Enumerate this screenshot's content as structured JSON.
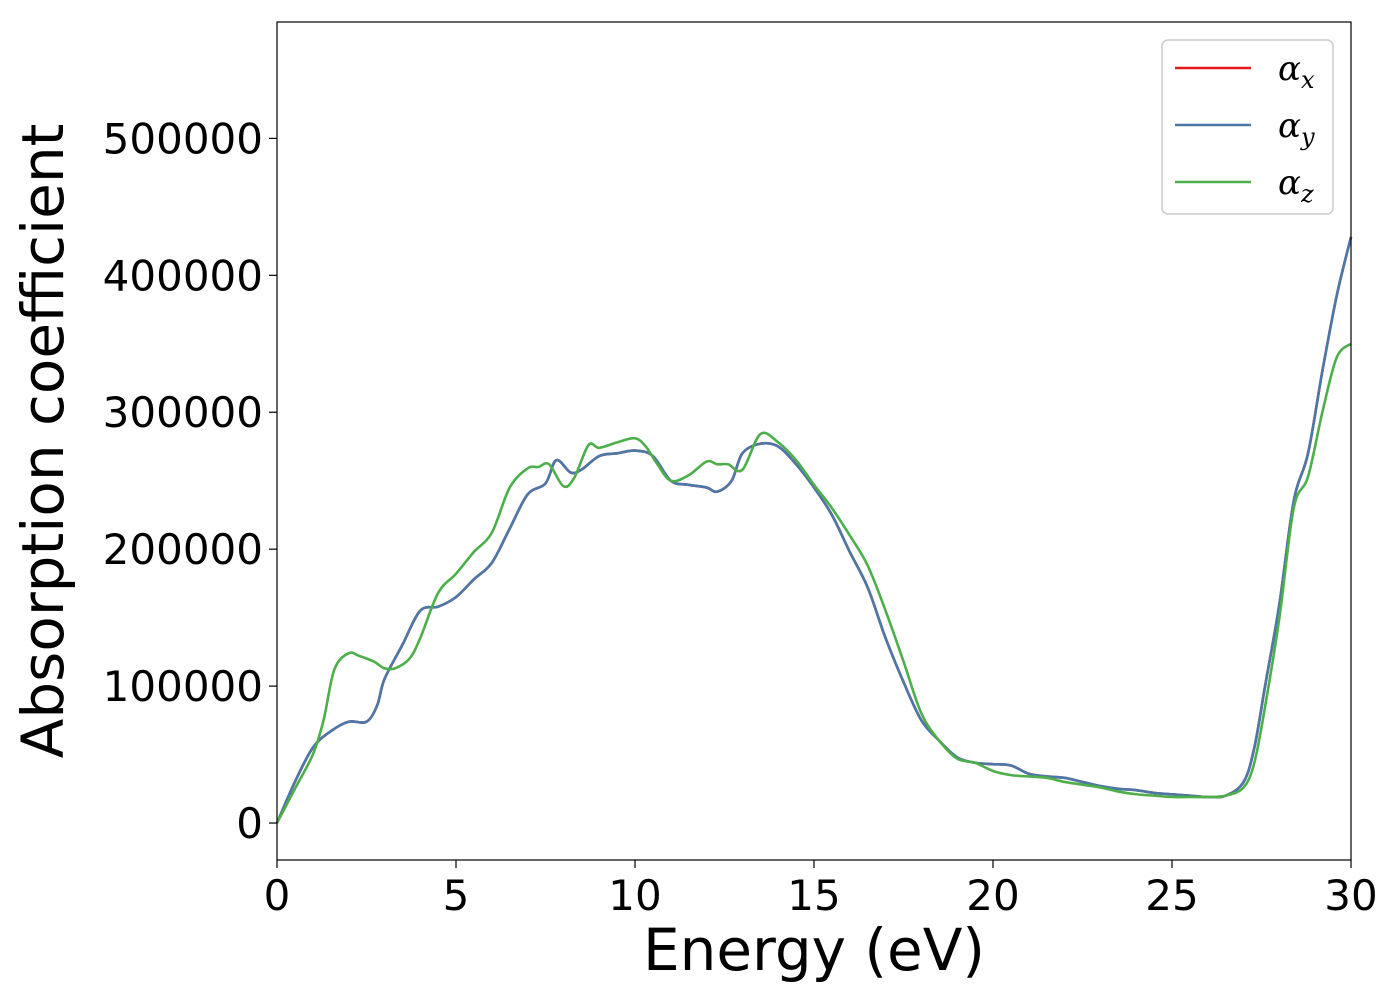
{
  "chart_data": {
    "type": "line",
    "xlabel": "Energy (eV)",
    "ylabel": "Absorption coefficient",
    "xlim": [
      0,
      30
    ],
    "ylim": [
      -27000,
      585000
    ],
    "xticks": [
      0,
      5,
      10,
      15,
      20,
      25,
      30
    ],
    "yticks": [
      0,
      100000,
      200000,
      300000,
      400000,
      500000
    ],
    "grid": false,
    "legend_position": "top-right",
    "series": [
      {
        "name": "α_x",
        "legend_symbol": "α",
        "legend_sub": "x",
        "color": "#e41a1c",
        "x": [
          0,
          0.5,
          1,
          1.5,
          2,
          2.5,
          2.8,
          3,
          3.5,
          4,
          4.5,
          5,
          5.5,
          6,
          6.5,
          7,
          7.5,
          7.8,
          8.2,
          8.5,
          9,
          9.5,
          10,
          10.5,
          11,
          11.5,
          12,
          12.3,
          12.7,
          13,
          13.5,
          14,
          14.5,
          15,
          15.5,
          16,
          16.5,
          17,
          17.5,
          18,
          18.5,
          19,
          19.5,
          20,
          20.5,
          21,
          21.5,
          22,
          22.5,
          23,
          23.5,
          24,
          24.5,
          25,
          25.5,
          26,
          26.5,
          27,
          27.3,
          27.6,
          28,
          28.4,
          28.8,
          29.2,
          29.6,
          30
        ],
        "y": [
          0,
          30000,
          55000,
          67000,
          74000,
          74000,
          86000,
          105000,
          130000,
          155000,
          158000,
          165000,
          178000,
          190000,
          215000,
          240000,
          248000,
          265000,
          256000,
          258000,
          268000,
          270000,
          272000,
          268000,
          250000,
          247000,
          245000,
          242000,
          250000,
          270000,
          277000,
          275000,
          262000,
          245000,
          225000,
          198000,
          172000,
          135000,
          103000,
          75000,
          60000,
          48000,
          44000,
          43000,
          42000,
          36000,
          34000,
          33000,
          30000,
          27000,
          25000,
          24000,
          22000,
          21000,
          20000,
          19000,
          20000,
          30000,
          55000,
          100000,
          160000,
          235000,
          270000,
          330000,
          385000,
          428000
        ]
      },
      {
        "name": "α_y",
        "legend_symbol": "α",
        "legend_sub": "y",
        "color": "#4a78a8",
        "x": [
          0,
          0.5,
          1,
          1.5,
          2,
          2.5,
          2.8,
          3,
          3.5,
          4,
          4.5,
          5,
          5.5,
          6,
          6.5,
          7,
          7.5,
          7.8,
          8.2,
          8.5,
          9,
          9.5,
          10,
          10.5,
          11,
          11.5,
          12,
          12.3,
          12.7,
          13,
          13.5,
          14,
          14.5,
          15,
          15.5,
          16,
          16.5,
          17,
          17.5,
          18,
          18.5,
          19,
          19.5,
          20,
          20.5,
          21,
          21.5,
          22,
          22.5,
          23,
          23.5,
          24,
          24.5,
          25,
          25.5,
          26,
          26.5,
          27,
          27.3,
          27.6,
          28,
          28.4,
          28.8,
          29.2,
          29.6,
          30
        ],
        "y": [
          0,
          30000,
          55000,
          67000,
          74000,
          74000,
          86000,
          105000,
          130000,
          155000,
          158000,
          165000,
          178000,
          190000,
          215000,
          240000,
          248000,
          265000,
          256000,
          258000,
          268000,
          270000,
          272000,
          268000,
          250000,
          247000,
          245000,
          242000,
          250000,
          270000,
          277000,
          275000,
          262000,
          245000,
          225000,
          198000,
          172000,
          135000,
          103000,
          75000,
          60000,
          48000,
          44000,
          43000,
          42000,
          36000,
          34000,
          33000,
          30000,
          27000,
          25000,
          24000,
          22000,
          21000,
          20000,
          19000,
          20000,
          30000,
          55000,
          100000,
          160000,
          235000,
          270000,
          330000,
          385000,
          428000
        ]
      },
      {
        "name": "α_z",
        "legend_symbol": "α",
        "legend_sub": "z",
        "color": "#4daf4a",
        "x": [
          0,
          0.5,
          1,
          1.3,
          1.6,
          2,
          2.3,
          2.7,
          3,
          3.3,
          3.7,
          4,
          4.5,
          5,
          5.5,
          6,
          6.5,
          7,
          7.3,
          7.6,
          8,
          8.3,
          8.7,
          9,
          9.5,
          10,
          10.3,
          10.6,
          11,
          11.5,
          12,
          12.3,
          12.6,
          13,
          13.5,
          14,
          14.5,
          15,
          15.5,
          16,
          16.5,
          17,
          17.5,
          18,
          18.5,
          19,
          19.5,
          20,
          20.5,
          21,
          21.5,
          22,
          22.5,
          23,
          23.5,
          24,
          24.5,
          25,
          25.5,
          26,
          26.5,
          27,
          27.3,
          27.6,
          28,
          28.4,
          28.8,
          29.2,
          29.6,
          30
        ],
        "y": [
          0,
          25000,
          50000,
          75000,
          112000,
          124000,
          122000,
          118000,
          113000,
          113000,
          120000,
          135000,
          168000,
          182000,
          198000,
          212000,
          245000,
          259000,
          260000,
          262000,
          246000,
          252000,
          276000,
          274000,
          278000,
          281000,
          275000,
          263000,
          250000,
          254000,
          264000,
          262000,
          262000,
          258000,
          284000,
          278000,
          265000,
          247000,
          230000,
          210000,
          188000,
          155000,
          118000,
          80000,
          60000,
          47000,
          44000,
          38000,
          35000,
          34000,
          33000,
          30000,
          28000,
          26000,
          23000,
          21000,
          20000,
          19000,
          19000,
          19000,
          20000,
          26000,
          44000,
          85000,
          150000,
          230000,
          253000,
          300000,
          340000,
          350000
        ]
      }
    ]
  }
}
